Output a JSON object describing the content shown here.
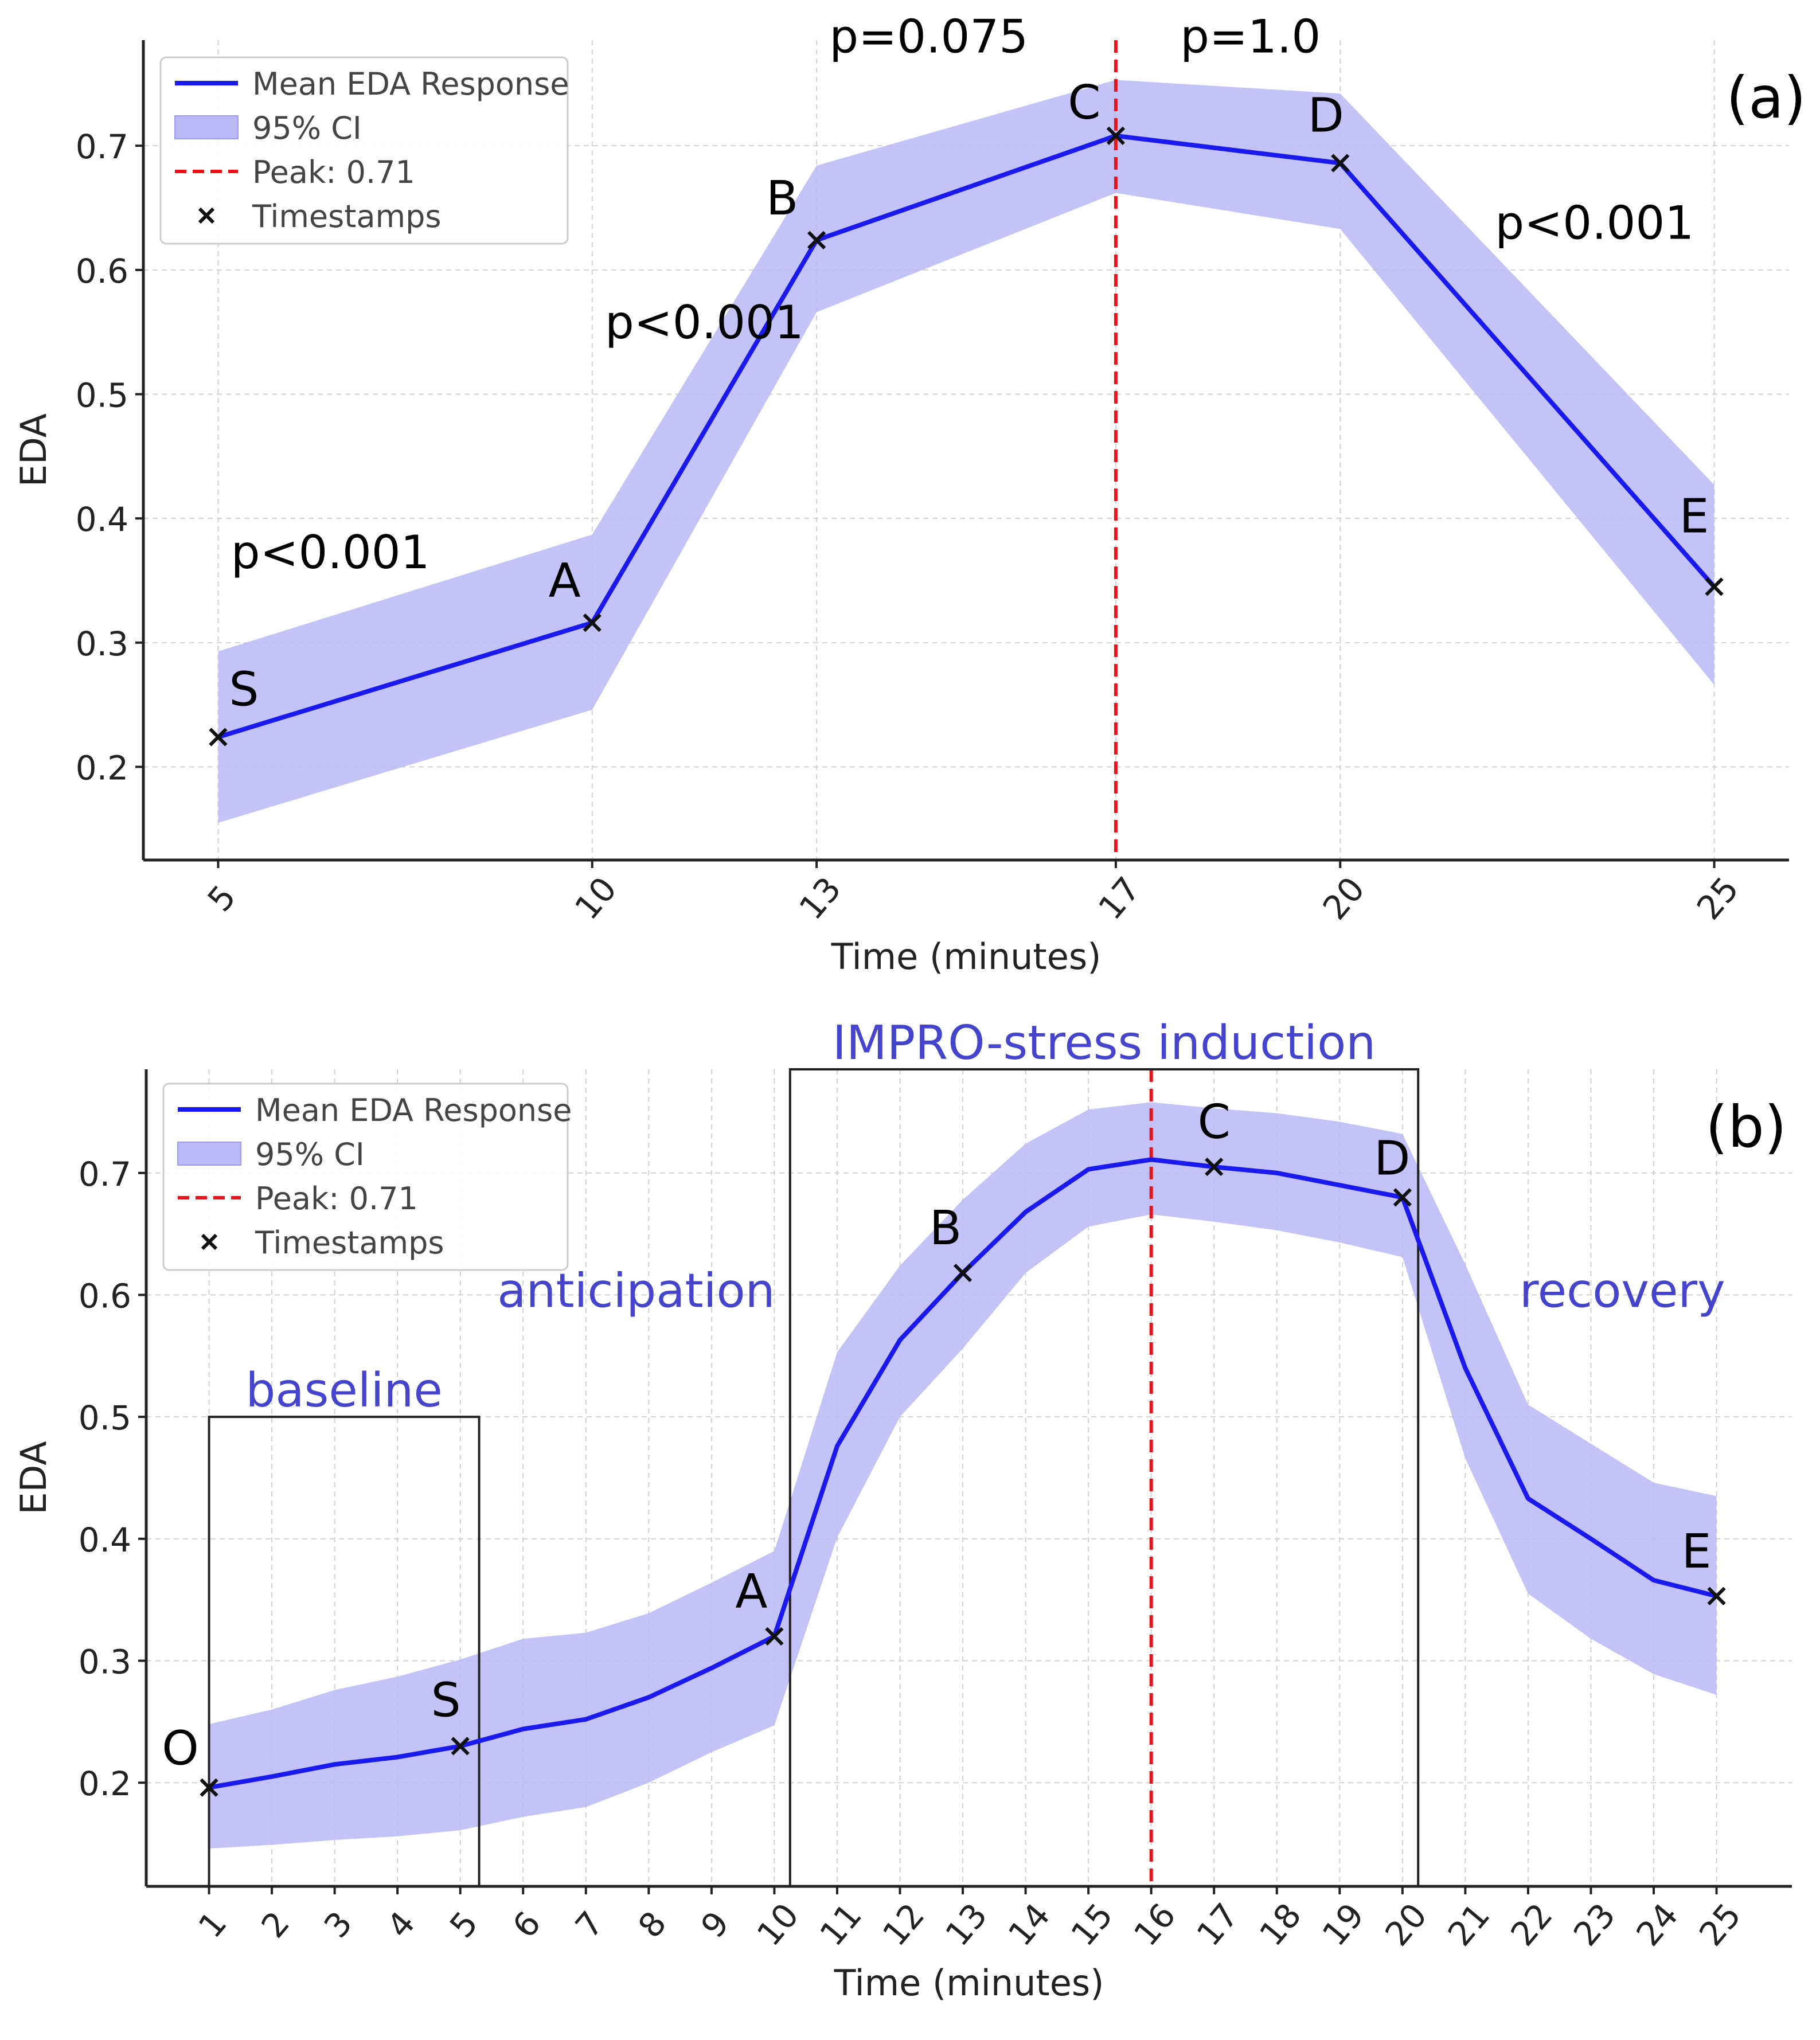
{
  "colors": {
    "line": "#1a1aee",
    "band": "#b9b9f7",
    "peak": "#e8141b",
    "grid": "#d2d2d2",
    "annotation": "#4444cc"
  },
  "chart_data": [
    {
      "panel": "(a)",
      "type": "line",
      "xlabel": "Time (minutes)",
      "ylabel": "EDA",
      "xlim": [
        4,
        26
      ],
      "ylim": [
        0.125,
        0.785
      ],
      "xticks": [
        5,
        10,
        13,
        17,
        20,
        25
      ],
      "yticks": [
        0.2,
        0.3,
        0.4,
        0.5,
        0.6,
        0.7
      ],
      "ytick_labels": [
        "0.2",
        "0.3",
        "0.4",
        "0.5",
        "0.6",
        "0.7"
      ],
      "legend": [
        "Mean EDA Response",
        "95% CI",
        "Peak: 0.71",
        "Timestamps"
      ],
      "legend_position": "upper-left",
      "series": [
        {
          "name": "Mean EDA Response",
          "x": [
            5,
            10,
            13,
            17,
            20,
            25
          ],
          "y": [
            0.224,
            0.316,
            0.624,
            0.708,
            0.686,
            0.345
          ],
          "ci_lower": [
            0.155,
            0.246,
            0.566,
            0.662,
            0.633,
            0.266
          ],
          "ci_upper": [
            0.293,
            0.387,
            0.684,
            0.753,
            0.742,
            0.427
          ]
        }
      ],
      "peak": {
        "x": 17,
        "value": 0.71
      },
      "timestamps": [
        {
          "label": "S",
          "x": 5,
          "y": 0.224
        },
        {
          "label": "A",
          "x": 10,
          "y": 0.316
        },
        {
          "label": "B",
          "x": 13,
          "y": 0.624
        },
        {
          "label": "C",
          "x": 17,
          "y": 0.708
        },
        {
          "label": "D",
          "x": 20,
          "y": 0.686
        },
        {
          "label": "E",
          "x": 25,
          "y": 0.345
        }
      ],
      "annotations": [
        {
          "text": "p<0.001",
          "x": 6.5,
          "y": 0.36
        },
        {
          "text": "p<0.001",
          "x": 11.5,
          "y": 0.545
        },
        {
          "text": "p=0.075",
          "x": 14.5,
          "y": 0.775
        },
        {
          "text": "p=1.0",
          "x": 18.8,
          "y": 0.775
        },
        {
          "text": "p<0.001",
          "x": 23.4,
          "y": 0.625
        }
      ]
    },
    {
      "panel": "(b)",
      "type": "line",
      "xlabel": "Time (minutes)",
      "ylabel": "EDA",
      "xlim": [
        0,
        26.2
      ],
      "ylim": [
        0.115,
        0.785
      ],
      "xticks": [
        1,
        2,
        3,
        4,
        5,
        6,
        7,
        8,
        9,
        10,
        11,
        12,
        13,
        14,
        15,
        16,
        17,
        18,
        19,
        20,
        21,
        22,
        23,
        24,
        25
      ],
      "yticks": [
        0.2,
        0.3,
        0.4,
        0.5,
        0.6,
        0.7
      ],
      "ytick_labels": [
        "0.2",
        "0.3",
        "0.4",
        "0.5",
        "0.6",
        "0.7"
      ],
      "legend": [
        "Mean EDA Response",
        "95% CI",
        "Peak: 0.71",
        "Timestamps"
      ],
      "legend_position": "upper-left",
      "series": [
        {
          "name": "Mean EDA Response",
          "x": [
            1,
            2,
            3,
            4,
            5,
            6,
            7,
            8,
            9,
            10,
            11,
            12,
            13,
            14,
            15,
            16,
            17,
            18,
            19,
            20,
            21,
            22,
            23,
            24,
            25
          ],
          "y": [
            0.196,
            0.205,
            0.215,
            0.221,
            0.23,
            0.244,
            0.252,
            0.27,
            0.294,
            0.32,
            0.476,
            0.563,
            0.618,
            0.668,
            0.703,
            0.711,
            0.705,
            0.7,
            0.69,
            0.68,
            0.54,
            0.433,
            0.4,
            0.366,
            0.353
          ],
          "ci_lower": [
            0.146,
            0.149,
            0.153,
            0.156,
            0.161,
            0.172,
            0.18,
            0.2,
            0.225,
            0.247,
            0.401,
            0.5,
            0.556,
            0.618,
            0.656,
            0.666,
            0.66,
            0.653,
            0.643,
            0.631,
            0.466,
            0.355,
            0.318,
            0.289,
            0.272
          ],
          "ci_upper": [
            0.248,
            0.26,
            0.276,
            0.287,
            0.301,
            0.318,
            0.323,
            0.339,
            0.364,
            0.39,
            0.553,
            0.624,
            0.678,
            0.724,
            0.752,
            0.758,
            0.753,
            0.749,
            0.742,
            0.732,
            0.625,
            0.51,
            0.478,
            0.446,
            0.435
          ]
        }
      ],
      "peak": {
        "x": 16,
        "value": 0.71
      },
      "timestamps": [
        {
          "label": "O",
          "x": 1,
          "y": 0.196
        },
        {
          "label": "S",
          "x": 5,
          "y": 0.23
        },
        {
          "label": "A",
          "x": 10,
          "y": 0.32
        },
        {
          "label": "B",
          "x": 13,
          "y": 0.618
        },
        {
          "label": "C",
          "x": 17,
          "y": 0.705
        },
        {
          "label": "D",
          "x": 20,
          "y": 0.68
        },
        {
          "label": "E",
          "x": 25,
          "y": 0.353
        }
      ],
      "phase_boxes": [
        {
          "label": "baseline",
          "x0": 1,
          "x1": 5.3,
          "y0": 0.115,
          "y1": 0.5
        },
        {
          "label": "IMPRO-stress induction",
          "x0": 10.25,
          "x1": 20.25,
          "y0": 0.115,
          "y1": 0.785
        }
      ],
      "annotations": [
        {
          "text": "anticipation",
          "x": 7.8,
          "y": 0.59
        },
        {
          "text": "recovery",
          "x": 23.5,
          "y": 0.59
        }
      ]
    }
  ]
}
